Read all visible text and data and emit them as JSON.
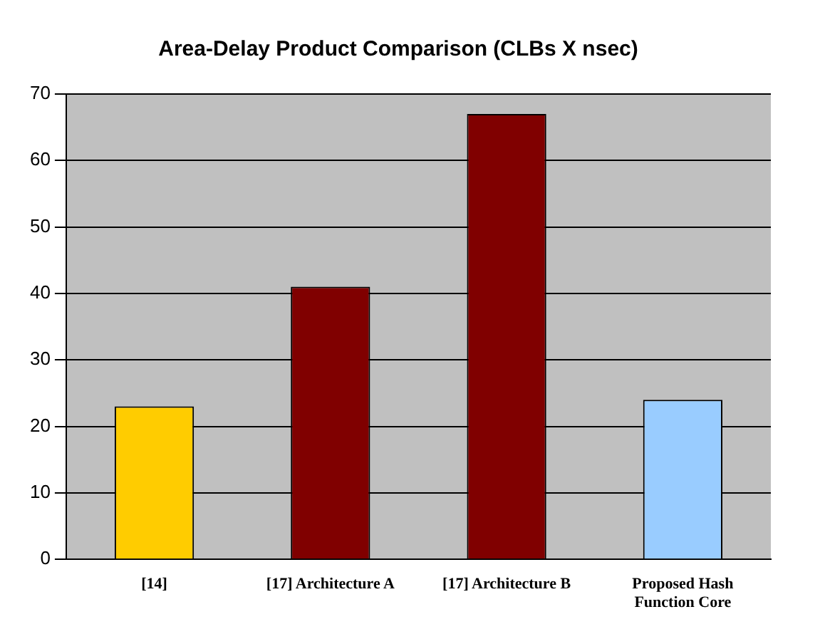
{
  "chart_data": {
    "type": "bar",
    "title": "Area-Delay Product Comparison (CLBs X nsec)",
    "categories": [
      "[14]",
      "[17] Architecture A",
      "[17] Architecture B",
      "Proposed Hash Function Core"
    ],
    "values": [
      23,
      41,
      67,
      24
    ],
    "colors": [
      "#ffcc00",
      "#800000",
      "#800000",
      "#99ccff"
    ],
    "ylim": [
      0,
      70
    ],
    "yticks": [
      0,
      10,
      20,
      30,
      40,
      50,
      60,
      70
    ],
    "grid": "y"
  }
}
